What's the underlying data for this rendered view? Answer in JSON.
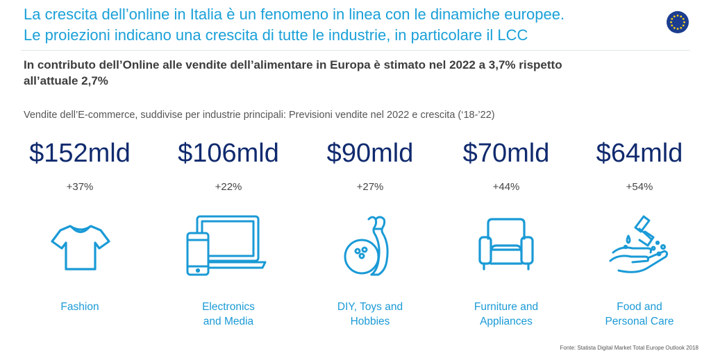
{
  "header": {
    "title_line1": "La crescita dell’online in Italia è un fenomeno in linea con le dinamiche europee.",
    "title_line2": "Le proiezioni indicano una crescita di tutte le industrie, in particolare il LCC",
    "subtitle_line1": "In contributo dell’Online alle vendite dell’alimentare in Europa è stimato nel 2022 a 3,7% rispetto",
    "subtitle_line2": "all’attuale 2,7%",
    "caption": "Vendite dell’E-commerce, suddivise per industrie principali: Previsioni vendite nel 2022 e crescita (‘18-’22)"
  },
  "colors": {
    "title": "#1aa0d8",
    "value": "#102a6e",
    "icon": "#1a9ad6",
    "eu_blue": "#1c3d8f",
    "eu_star": "#f5cf1a"
  },
  "industries": [
    {
      "currency": "$",
      "amount": "152",
      "unit": "mld",
      "growth": "+37%",
      "label_line1": "Fashion",
      "label_line2": "",
      "icon": "tshirt-icon"
    },
    {
      "currency": "$",
      "amount": "106",
      "unit": "mld",
      "growth": "+22%",
      "label_line1": "Electronics",
      "label_line2": "and Media",
      "icon": "devices-icon"
    },
    {
      "currency": "$",
      "amount": "90",
      "unit": "mld",
      "growth": "+27%",
      "label_line1": "DIY, Toys and",
      "label_line2": "Hobbies",
      "icon": "bowling-icon"
    },
    {
      "currency": "$",
      "amount": "70",
      "unit": "mld",
      "growth": "+44%",
      "label_line1": "Furniture and",
      "label_line2": "Appliances",
      "icon": "armchair-icon"
    },
    {
      "currency": "$",
      "amount": "64",
      "unit": "mld",
      "growth": "+54%",
      "label_line1": "Food and",
      "label_line2": "Personal Care",
      "icon": "hand-wash-icon"
    }
  ],
  "footer": {
    "source": "Fonte: Statista  Digital Market Total Europe Outlook 2018"
  }
}
